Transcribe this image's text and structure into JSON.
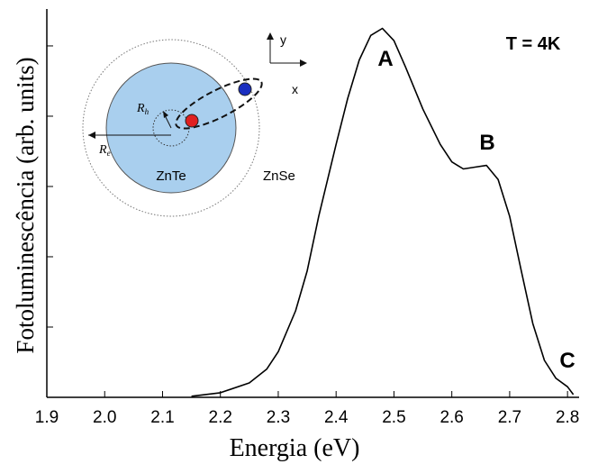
{
  "chart_data": {
    "type": "line",
    "xlabel": "Energia (eV)",
    "ylabel": "Fotoluminescência (arb. units)",
    "x": [
      2.15,
      2.2,
      2.25,
      2.28,
      2.3,
      2.33,
      2.35,
      2.37,
      2.4,
      2.42,
      2.44,
      2.46,
      2.48,
      2.5,
      2.52,
      2.55,
      2.58,
      2.6,
      2.62,
      2.64,
      2.66,
      2.68,
      2.7,
      2.72,
      2.74,
      2.76,
      2.78,
      2.8,
      2.81
    ],
    "values": [
      0.003,
      0.013,
      0.041,
      0.08,
      0.13,
      0.246,
      0.36,
      0.515,
      0.72,
      0.85,
      0.96,
      1.03,
      1.05,
      1.015,
      0.94,
      0.82,
      0.72,
      0.67,
      0.65,
      0.655,
      0.66,
      0.62,
      0.515,
      0.36,
      0.21,
      0.105,
      0.054,
      0.03,
      0.008
    ],
    "color": "#000000",
    "xlim": [
      1.9,
      2.82
    ],
    "ylim": [
      0,
      1.105
    ],
    "xticks": [
      1.9,
      {
        "value": 2.0,
        "label": "2.0"
      },
      2.1,
      2.2,
      2.3,
      2.4,
      2.5,
      2.6,
      2.7,
      2.8
    ],
    "yticks": [
      0,
      0.2,
      0.4,
      0.6,
      0.8,
      1.0
    ],
    "annotations": {
      "peak_a": "A",
      "peak_b": "B",
      "peak_c": "C",
      "temperature": "T = 4K"
    },
    "inset": {
      "core": "ZnTe",
      "shell": "ZnSe",
      "x_axis": "x",
      "y_axis": "y",
      "hole_radius": [
        "R",
        "h"
      ],
      "electron_radius": [
        "R",
        "e"
      ]
    }
  }
}
